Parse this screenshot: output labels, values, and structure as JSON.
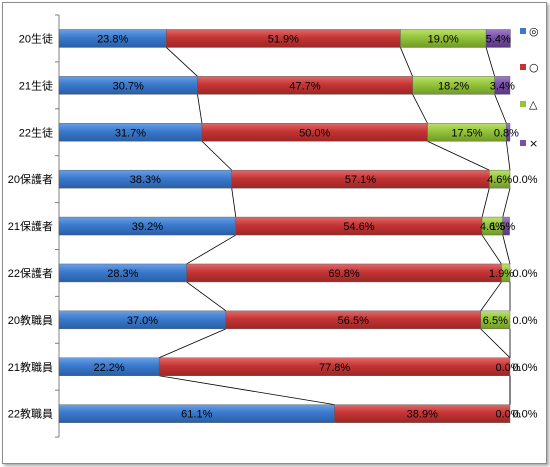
{
  "chart_data": {
    "type": "bar",
    "stacked": "percent",
    "orientation": "horizontal",
    "categories": [
      "20生徒",
      "21生徒",
      "22生徒",
      "20保護者",
      "21保護者",
      "22保護者",
      "20教職員",
      "21教職員",
      "22教職員"
    ],
    "series": [
      {
        "name": "◎",
        "color": "#3a79cc",
        "values": [
          23.8,
          30.7,
          31.7,
          38.3,
          39.2,
          28.3,
          37.0,
          22.2,
          61.1
        ],
        "labels": [
          "23.8%",
          "30.7%",
          "31.7%",
          "38.3%",
          "39.2%",
          "28.3%",
          "37.0%",
          "22.2%",
          "61.1%"
        ]
      },
      {
        "name": "○",
        "color": "#c53434",
        "values": [
          51.9,
          47.7,
          50.0,
          57.1,
          54.6,
          69.8,
          56.5,
          77.8,
          38.9
        ],
        "labels": [
          "51.9%",
          "47.7%",
          "50.0%",
          "57.1%",
          "54.6%",
          "69.8%",
          "56.5%",
          "77.8%",
          "38.9%"
        ]
      },
      {
        "name": "△",
        "color": "#93c43a",
        "values": [
          19.0,
          18.2,
          17.5,
          4.6,
          4.6,
          1.9,
          6.5,
          0.0,
          0.0
        ],
        "labels": [
          "19.0%",
          "18.2%",
          "17.5%",
          "4.6%",
          "4.6%",
          "1.9%",
          "6.5%",
          "0.0%",
          "0.0%"
        ]
      },
      {
        "name": "×",
        "color": "#7a4ea6",
        "values": [
          5.4,
          3.4,
          0.8,
          0.0,
          1.5,
          0.0,
          0.0,
          0.0,
          0.0
        ],
        "labels": [
          "5.4%",
          "3.4%",
          "0.8%",
          "0.0%",
          "1.5%",
          "0.0%",
          "0.0%",
          "0.0%",
          "0.0%"
        ]
      }
    ],
    "series_lines": true,
    "xlim": [
      0,
      100
    ],
    "legend_position": "right"
  }
}
